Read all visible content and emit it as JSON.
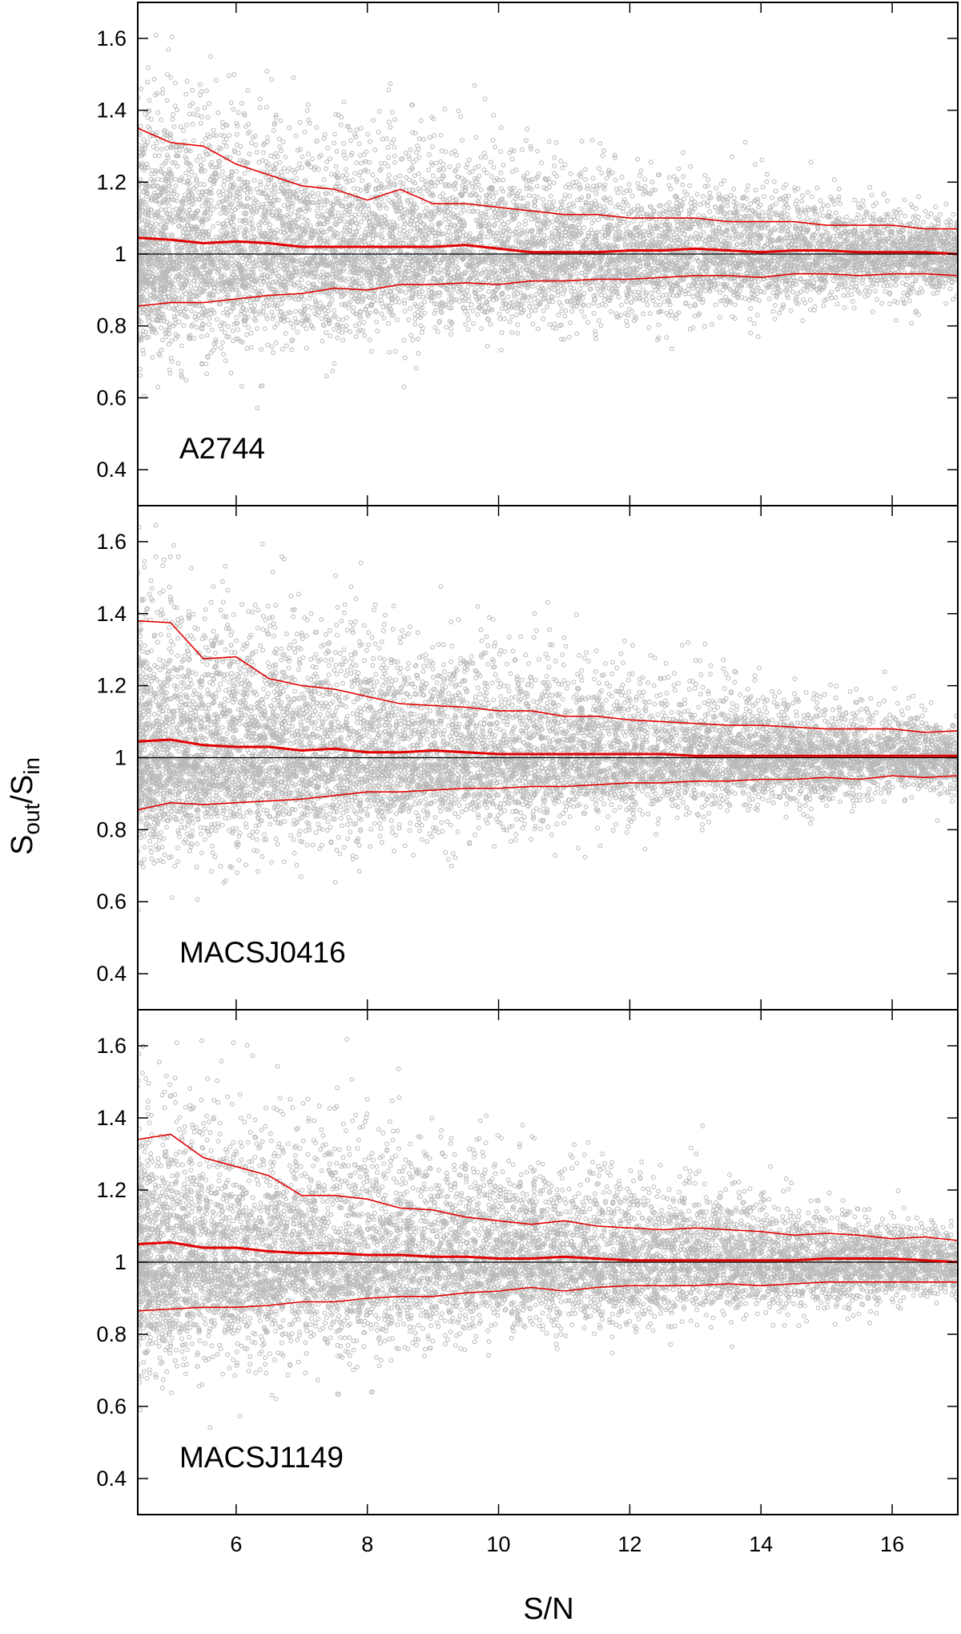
{
  "ylabel": {
    "main": "S",
    "sub1": "out",
    "sep": "/S",
    "sub2": "in"
  },
  "xlabel": "S/N",
  "chart_data": [
    {
      "type": "scatter",
      "panel_label": "A2744",
      "xlim": [
        4.5,
        17
      ],
      "ylim": [
        0.3,
        1.7
      ],
      "x_ticks": [
        6,
        8,
        10,
        12,
        14,
        16
      ],
      "y_ticks": [
        0.4,
        0.6,
        0.8,
        1,
        1.2,
        1.4,
        1.6
      ],
      "x_tick_labels": [
        "6",
        "8",
        "10",
        "12",
        "14",
        "16"
      ],
      "y_tick_labels": [
        "0.4",
        "0.6",
        "0.8",
        "1",
        "1.2",
        "1.4",
        "1.6"
      ],
      "reference_line": 1,
      "points_color": "#b8b8b8",
      "line_color": "#e30000",
      "scatter_model": {
        "sigma_low_at_min": 0.14,
        "sigma_low_at_max": 0.06,
        "sigma_high_at_min": 0.28,
        "sigma_high_at_max": 0.07,
        "n_points": 9000
      },
      "curves": {
        "x": [
          4.5,
          5,
          5.5,
          6,
          6.5,
          7,
          7.5,
          8,
          8.5,
          9,
          9.5,
          10,
          10.5,
          11,
          11.5,
          12,
          12.5,
          13,
          13.5,
          14,
          14.5,
          15,
          15.5,
          16,
          16.5,
          17
        ],
        "upper": [
          1.35,
          1.31,
          1.3,
          1.25,
          1.22,
          1.19,
          1.18,
          1.15,
          1.18,
          1.14,
          1.14,
          1.13,
          1.12,
          1.11,
          1.11,
          1.1,
          1.1,
          1.1,
          1.09,
          1.09,
          1.09,
          1.08,
          1.08,
          1.08,
          1.07,
          1.07
        ],
        "median": [
          1.045,
          1.04,
          1.03,
          1.035,
          1.03,
          1.02,
          1.02,
          1.02,
          1.02,
          1.02,
          1.025,
          1.015,
          1.005,
          1.005,
          1.005,
          1.01,
          1.01,
          1.015,
          1.01,
          1.005,
          1.01,
          1.01,
          1.005,
          1.005,
          1.005,
          1.0
        ],
        "lower": [
          0.855,
          0.865,
          0.865,
          0.875,
          0.885,
          0.89,
          0.905,
          0.9,
          0.915,
          0.915,
          0.92,
          0.915,
          0.925,
          0.925,
          0.93,
          0.93,
          0.935,
          0.94,
          0.94,
          0.935,
          0.945,
          0.945,
          0.94,
          0.945,
          0.945,
          0.94
        ]
      }
    },
    {
      "type": "scatter",
      "panel_label": "MACSJ0416",
      "xlim": [
        4.5,
        17
      ],
      "ylim": [
        0.3,
        1.7
      ],
      "x_ticks": [
        6,
        8,
        10,
        12,
        14,
        16
      ],
      "y_ticks": [
        0.4,
        0.6,
        0.8,
        1,
        1.2,
        1.4,
        1.6
      ],
      "x_tick_labels": [
        "6",
        "8",
        "10",
        "12",
        "14",
        "16"
      ],
      "y_tick_labels": [
        "0.4",
        "0.6",
        "0.8",
        "1",
        "1.2",
        "1.4",
        "1.6"
      ],
      "reference_line": 1,
      "points_color": "#b8b8b8",
      "line_color": "#e30000",
      "scatter_model": {
        "sigma_low_at_min": 0.14,
        "sigma_low_at_max": 0.05,
        "sigma_high_at_min": 0.3,
        "sigma_high_at_max": 0.07,
        "n_points": 9000
      },
      "curves": {
        "x": [
          4.5,
          5,
          5.5,
          6,
          6.5,
          7,
          7.5,
          8,
          8.5,
          9,
          9.5,
          10,
          10.5,
          11,
          11.5,
          12,
          12.5,
          13,
          13.5,
          14,
          14.5,
          15,
          15.5,
          16,
          16.5,
          17
        ],
        "upper": [
          1.38,
          1.375,
          1.275,
          1.28,
          1.22,
          1.2,
          1.19,
          1.17,
          1.15,
          1.145,
          1.14,
          1.13,
          1.13,
          1.115,
          1.115,
          1.105,
          1.1,
          1.095,
          1.09,
          1.09,
          1.085,
          1.08,
          1.08,
          1.08,
          1.07,
          1.075
        ],
        "median": [
          1.045,
          1.05,
          1.035,
          1.03,
          1.03,
          1.02,
          1.025,
          1.015,
          1.015,
          1.02,
          1.015,
          1.01,
          1.01,
          1.01,
          1.01,
          1.01,
          1.01,
          1.005,
          1.005,
          1.005,
          1.005,
          1.005,
          1.005,
          1.005,
          1.005,
          1.005
        ],
        "lower": [
          0.855,
          0.875,
          0.87,
          0.875,
          0.88,
          0.885,
          0.895,
          0.905,
          0.905,
          0.91,
          0.915,
          0.915,
          0.92,
          0.92,
          0.925,
          0.93,
          0.93,
          0.935,
          0.935,
          0.94,
          0.94,
          0.945,
          0.94,
          0.95,
          0.945,
          0.95
        ]
      }
    },
    {
      "type": "scatter",
      "panel_label": "MACSJ1149",
      "xlim": [
        4.5,
        17
      ],
      "ylim": [
        0.3,
        1.7
      ],
      "x_ticks": [
        6,
        8,
        10,
        12,
        14,
        16
      ],
      "y_ticks": [
        0.4,
        0.6,
        0.8,
        1,
        1.2,
        1.4,
        1.6
      ],
      "x_tick_labels": [
        "6",
        "8",
        "10",
        "12",
        "14",
        "16"
      ],
      "y_tick_labels": [
        "0.4",
        "0.6",
        "0.8",
        "1",
        "1.2",
        "1.4",
        "1.6"
      ],
      "reference_line": 1,
      "points_color": "#b8b8b8",
      "line_color": "#e30000",
      "scatter_model": {
        "sigma_low_at_min": 0.15,
        "sigma_low_at_max": 0.05,
        "sigma_high_at_min": 0.3,
        "sigma_high_at_max": 0.06,
        "n_points": 9000
      },
      "curves": {
        "x": [
          4.5,
          5,
          5.5,
          6,
          6.5,
          7,
          7.5,
          8,
          8.5,
          9,
          9.5,
          10,
          10.5,
          11,
          11.5,
          12,
          12.5,
          13,
          13.5,
          14,
          14.5,
          15,
          15.5,
          16,
          16.5,
          17
        ],
        "upper": [
          1.34,
          1.355,
          1.29,
          1.265,
          1.24,
          1.185,
          1.185,
          1.175,
          1.15,
          1.145,
          1.125,
          1.115,
          1.105,
          1.115,
          1.1,
          1.095,
          1.09,
          1.095,
          1.09,
          1.085,
          1.075,
          1.08,
          1.075,
          1.065,
          1.07,
          1.06
        ],
        "median": [
          1.05,
          1.055,
          1.04,
          1.04,
          1.03,
          1.025,
          1.025,
          1.02,
          1.02,
          1.015,
          1.015,
          1.01,
          1.01,
          1.015,
          1.01,
          1.005,
          1.005,
          1.005,
          1.005,
          1.005,
          1.005,
          1.01,
          1.01,
          1.01,
          1.005,
          1.0
        ],
        "lower": [
          0.865,
          0.87,
          0.875,
          0.875,
          0.88,
          0.89,
          0.89,
          0.9,
          0.905,
          0.905,
          0.915,
          0.92,
          0.93,
          0.92,
          0.93,
          0.935,
          0.935,
          0.935,
          0.94,
          0.935,
          0.94,
          0.945,
          0.945,
          0.945,
          0.945,
          0.945
        ]
      }
    }
  ]
}
